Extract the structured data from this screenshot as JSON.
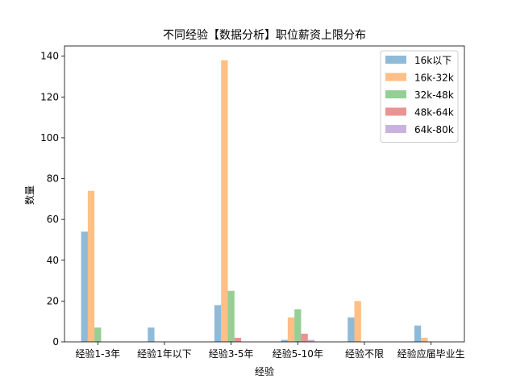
{
  "chart_data": {
    "type": "bar",
    "title": "不同经验【数据分析】职位薪资上限分布",
    "xlabel": "经验",
    "ylabel": "数量",
    "categories": [
      "经验1-3年",
      "经验1年以下",
      "经验3-5年",
      "经验5-10年",
      "经验不限",
      "经验应届毕业生"
    ],
    "series": [
      {
        "name": "16k以下",
        "color": "#1f77b4",
        "values": [
          54,
          7,
          18,
          1,
          12,
          8
        ]
      },
      {
        "name": "16k-32k",
        "color": "#ff7f0e",
        "values": [
          74,
          0,
          138,
          12,
          20,
          2
        ]
      },
      {
        "name": "32k-48k",
        "color": "#2ca02c",
        "values": [
          7,
          0,
          25,
          16,
          0,
          0
        ]
      },
      {
        "name": "48k-64k",
        "color": "#d62728",
        "values": [
          0,
          0,
          2,
          4,
          0,
          0
        ]
      },
      {
        "name": "64k-80k",
        "color": "#9467bd",
        "values": [
          0,
          0,
          0,
          1,
          0,
          0
        ]
      }
    ],
    "yticks": [
      0,
      20,
      40,
      60,
      80,
      100,
      120,
      140
    ],
    "ylim": [
      0,
      145
    ],
    "legend_position": "top-right",
    "grid": false
  }
}
